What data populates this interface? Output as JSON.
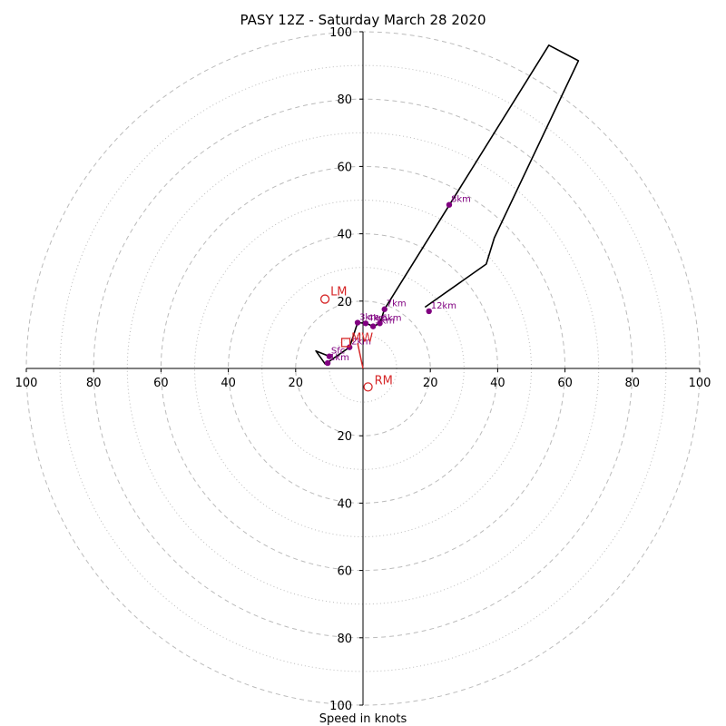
{
  "chart_data": {
    "type": "hodograph",
    "title": "PASY 12Z - Saturday March 28 2020",
    "xlabel": "Speed in knots",
    "rings_major": [
      20,
      40,
      60,
      80,
      100
    ],
    "rings_minor": [
      10,
      30,
      50,
      70,
      90
    ],
    "axis_range": [
      -100,
      100
    ],
    "axis_ticks": [
      {
        "value": -100,
        "label": "100"
      },
      {
        "value": -80,
        "label": "80"
      },
      {
        "value": -60,
        "label": "60"
      },
      {
        "value": -40,
        "label": "40"
      },
      {
        "value": -20,
        "label": "20"
      },
      {
        "value": 20,
        "label": "20"
      },
      {
        "value": 40,
        "label": "40"
      },
      {
        "value": 60,
        "label": "60"
      },
      {
        "value": 80,
        "label": "80"
      },
      {
        "value": 100,
        "label": "100"
      }
    ],
    "hodograph_trace": [
      [
        -10.0,
        3.6
      ],
      [
        -14.0,
        5.2
      ],
      [
        -11.2,
        1.3
      ],
      [
        -4.0,
        6.3
      ],
      [
        -1.6,
        13.6
      ],
      [
        1.0,
        13.4
      ],
      [
        3.0,
        12.5
      ],
      [
        5.0,
        13.4
      ],
      [
        6.4,
        17.6
      ],
      [
        55.2,
        96.0
      ],
      [
        64.0,
        91.4
      ],
      [
        39.0,
        38.8
      ],
      [
        36.6,
        31.0
      ],
      [
        18.4,
        18.2
      ]
    ],
    "height_points": [
      {
        "label": "Sfc",
        "u": -10.0,
        "v": 3.6
      },
      {
        "label": "1km",
        "u": -10.5,
        "v": 1.6
      },
      {
        "label": "2km",
        "u": -4.0,
        "v": 6.3
      },
      {
        "label": "3km",
        "u": -1.6,
        "v": 13.6
      },
      {
        "label": "4km",
        "u": 0.8,
        "v": 13.4
      },
      {
        "label": "5km",
        "u": 3.0,
        "v": 12.5
      },
      {
        "label": "6km",
        "u": 5.0,
        "v": 13.4
      },
      {
        "label": "7km",
        "u": 6.4,
        "v": 17.6
      },
      {
        "label": "8km",
        "u": 25.6,
        "v": 48.6
      },
      {
        "label": "12km",
        "u": 19.6,
        "v": 17.0
      }
    ],
    "storm_motion": {
      "rm": {
        "label": "RM",
        "u": 1.5,
        "v": -5.5
      },
      "lm": {
        "label": "LM",
        "u": -11.3,
        "v": 20.6
      },
      "mw": {
        "label": "MW",
        "u": -5.1,
        "v": 7.7
      },
      "shear_line": [
        [
          -1.6,
          7.5
        ],
        [
          0.0,
          0.0
        ]
      ]
    },
    "colors": {
      "trace": "#000000",
      "points": "#800080",
      "storm": "#d62728",
      "grid": "#bbbbbb",
      "axis": "#000000"
    }
  }
}
